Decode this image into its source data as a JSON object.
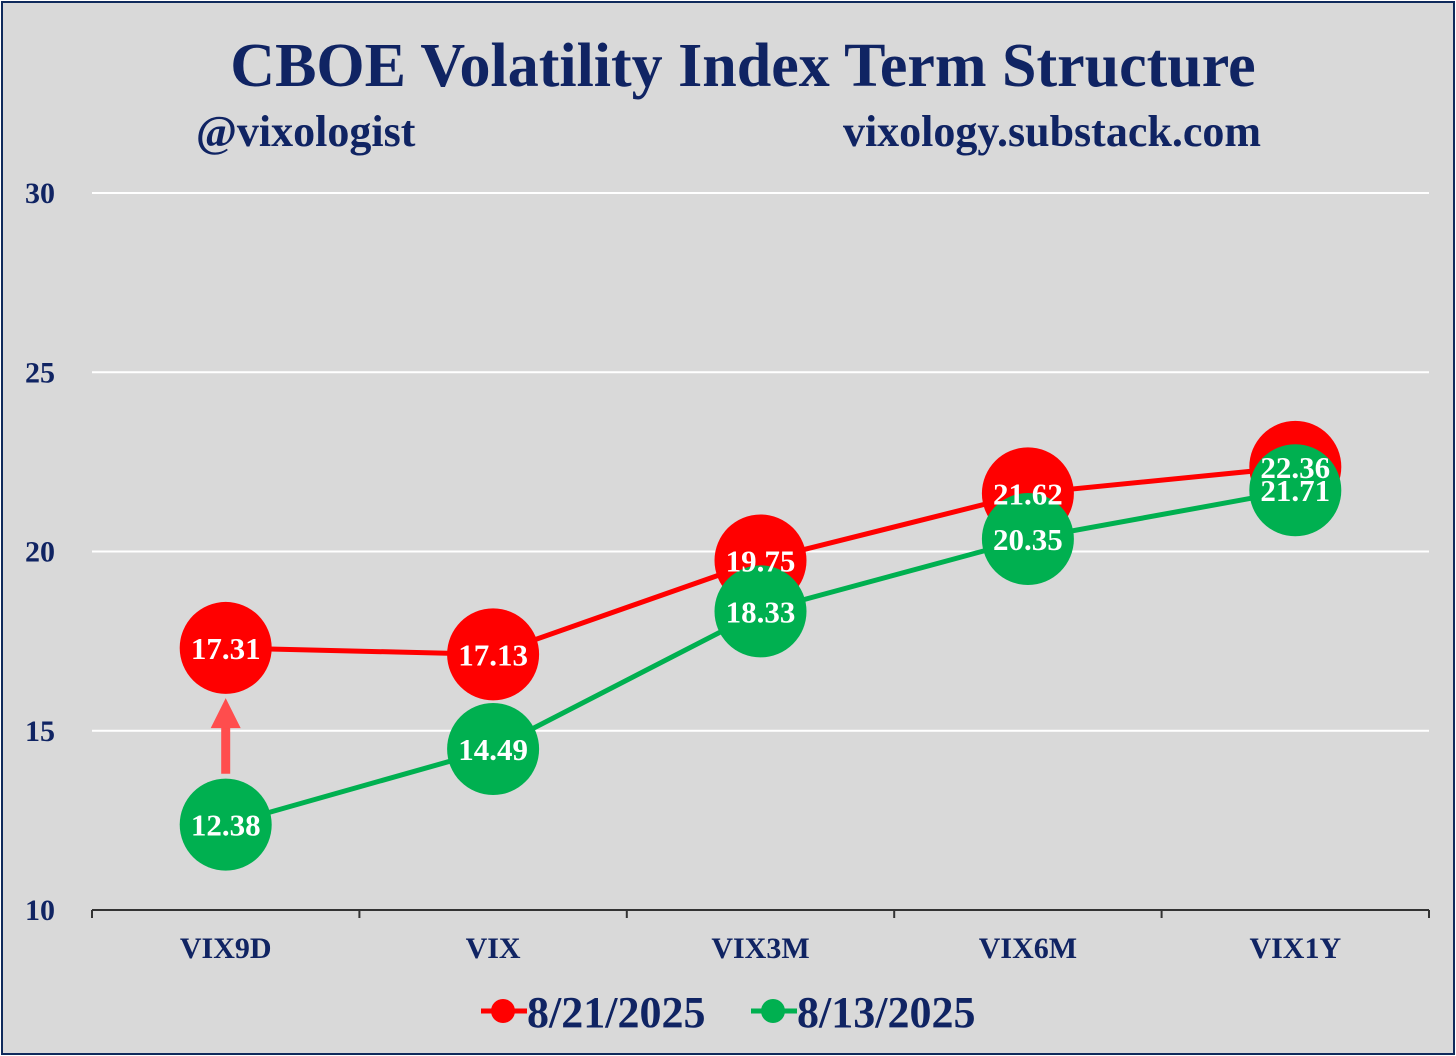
{
  "chart_data": {
    "type": "line",
    "title": "CBOE Volatility Index Term Structure",
    "subtitle_left": "@vixologist",
    "subtitle_right": "vixology.substack.com",
    "categories": [
      "VIX9D",
      "VIX",
      "VIX3M",
      "VIX6M",
      "VIX1Y"
    ],
    "series": [
      {
        "name": "8/21/2025",
        "color": "#ff0000",
        "values": [
          17.31,
          17.13,
          19.75,
          21.62,
          22.36
        ]
      },
      {
        "name": "8/13/2025",
        "color": "#00b050",
        "values": [
          12.38,
          14.49,
          18.33,
          20.35,
          21.71
        ]
      }
    ],
    "ylim": [
      10,
      30
    ],
    "yticks": [
      10,
      15,
      20,
      25,
      30
    ],
    "grid": true,
    "legend": "bottom-center",
    "annotations": [
      {
        "type": "arrow-up",
        "category": "VIX9D",
        "from_value": 13.8,
        "to_value": 15.8,
        "color": "#ff4d4d"
      }
    ]
  }
}
